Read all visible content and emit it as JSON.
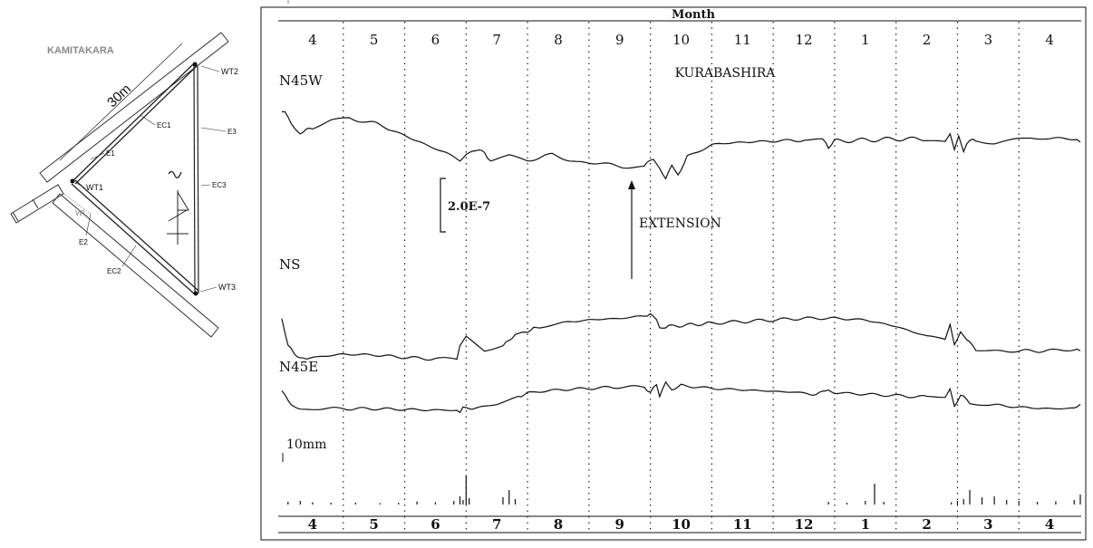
{
  "map": {
    "site_label": "KAMITAKARA",
    "distance_label": "30m",
    "labels": {
      "wt1": "WT1",
      "wt2": "WT2",
      "wt3": "WT3",
      "ec1": "EC1",
      "ec2": "EC2",
      "ec3": "EC3",
      "e1": "E1",
      "e2": "E2",
      "e3": "E3",
      "wl": "WL"
    },
    "north_icon": "north-arrow-icon"
  },
  "chart_data": {
    "type": "line",
    "title": "KURABASHIRA",
    "xlabel": "Month",
    "months_top": [
      "4",
      "5",
      "6",
      "7",
      "8",
      "9",
      "10",
      "11",
      "12",
      "1",
      "2",
      "3",
      "4"
    ],
    "months_bottom": [
      "4",
      "5",
      "6",
      "7",
      "8",
      "9",
      "10",
      "11",
      "12",
      "1",
      "2",
      "3",
      "4"
    ],
    "scale_bar_label": "2.0E-7",
    "annotation": "EXTENSION",
    "rain_scale_label": "10mm",
    "x_unit": "month index (0 = start of month 4)",
    "series": [
      {
        "name": "N45W",
        "points": [
          [
            0.0,
            0.9
          ],
          [
            0.05,
            1.0
          ],
          [
            0.15,
            0.3
          ],
          [
            0.3,
            -0.1
          ],
          [
            0.5,
            0.2
          ],
          [
            0.8,
            0.5
          ],
          [
            1.1,
            0.6
          ],
          [
            1.5,
            0.4
          ],
          [
            2.0,
            -0.2
          ],
          [
            2.5,
            -0.8
          ],
          [
            2.9,
            -1.3
          ],
          [
            3.05,
            -1.0
          ],
          [
            3.2,
            -0.8
          ],
          [
            3.4,
            -1.3
          ],
          [
            3.7,
            -1.1
          ],
          [
            4.0,
            -1.3
          ],
          [
            4.4,
            -1.1
          ],
          [
            4.8,
            -1.4
          ],
          [
            5.2,
            -1.5
          ],
          [
            5.6,
            -1.6
          ],
          [
            5.9,
            -1.6
          ],
          [
            6.05,
            -1.2
          ],
          [
            6.15,
            -1.8
          ],
          [
            6.25,
            -2.1
          ],
          [
            6.35,
            -1.6
          ],
          [
            6.45,
            -2.0
          ],
          [
            6.6,
            -1.2
          ],
          [
            7.0,
            -0.6
          ],
          [
            7.5,
            -0.5
          ],
          [
            8.0,
            -0.45
          ],
          [
            8.5,
            -0.4
          ],
          [
            8.8,
            -0.4
          ],
          [
            8.9,
            -0.7
          ],
          [
            9.0,
            -0.45
          ],
          [
            9.5,
            -0.4
          ],
          [
            10.0,
            -0.35
          ],
          [
            10.5,
            -0.35
          ],
          [
            10.8,
            -0.5
          ],
          [
            10.88,
            -0.1
          ],
          [
            10.95,
            -0.8
          ],
          [
            11.02,
            -0.2
          ],
          [
            11.1,
            -0.9
          ],
          [
            11.15,
            -0.5
          ],
          [
            11.3,
            -0.4
          ],
          [
            11.6,
            -0.5
          ],
          [
            11.9,
            -0.4
          ],
          [
            12.2,
            -0.3
          ],
          [
            12.5,
            -0.35
          ],
          [
            12.9,
            -0.3
          ],
          [
            13.0,
            -0.5
          ]
        ]
      },
      {
        "name": "NS",
        "points": [
          [
            0.0,
            0.2
          ],
          [
            0.1,
            -1.5
          ],
          [
            0.3,
            -2.3
          ],
          [
            0.5,
            -2.2
          ],
          [
            1.0,
            -2.0
          ],
          [
            1.5,
            -2.05
          ],
          [
            2.0,
            -2.2
          ],
          [
            2.5,
            -2.3
          ],
          [
            2.85,
            -2.3
          ],
          [
            2.9,
            -1.4
          ],
          [
            3.0,
            -1.0
          ],
          [
            3.3,
            -1.8
          ],
          [
            3.6,
            -1.5
          ],
          [
            3.8,
            -0.8
          ],
          [
            4.0,
            -0.6
          ],
          [
            4.2,
            -0.3
          ],
          [
            4.5,
            -0.1
          ],
          [
            5.0,
            0.1
          ],
          [
            5.5,
            0.2
          ],
          [
            5.9,
            0.3
          ],
          [
            6.0,
            0.5
          ],
          [
            6.1,
            0.1
          ],
          [
            6.15,
            -0.4
          ],
          [
            6.3,
            -0.3
          ],
          [
            7.0,
            -0.1
          ],
          [
            7.5,
            0.0
          ],
          [
            8.0,
            0.1
          ],
          [
            8.5,
            0.2
          ],
          [
            9.0,
            0.2
          ],
          [
            9.5,
            0.1
          ],
          [
            10.0,
            -0.3
          ],
          [
            10.5,
            -0.9
          ],
          [
            10.8,
            -1.1
          ],
          [
            10.88,
            -0.2
          ],
          [
            10.95,
            -1.5
          ],
          [
            11.05,
            -0.6
          ],
          [
            11.15,
            -1.1
          ],
          [
            11.3,
            -1.7
          ],
          [
            11.6,
            -1.8
          ],
          [
            12.0,
            -1.8
          ],
          [
            12.5,
            -1.8
          ],
          [
            12.9,
            -1.7
          ],
          [
            13.0,
            -1.8
          ]
        ]
      },
      {
        "name": "N45E",
        "points": [
          [
            0.0,
            0.5
          ],
          [
            0.15,
            -0.4
          ],
          [
            0.3,
            -0.8
          ],
          [
            0.6,
            -0.7
          ],
          [
            1.0,
            -0.7
          ],
          [
            1.5,
            -0.7
          ],
          [
            2.0,
            -0.75
          ],
          [
            2.5,
            -0.8
          ],
          [
            2.85,
            -0.8
          ],
          [
            2.9,
            -1.0
          ],
          [
            2.95,
            -0.6
          ],
          [
            3.1,
            -0.7
          ],
          [
            3.5,
            -0.4
          ],
          [
            3.8,
            0.0
          ],
          [
            4.0,
            0.4
          ],
          [
            4.5,
            0.6
          ],
          [
            5.0,
            0.7
          ],
          [
            5.5,
            0.8
          ],
          [
            5.9,
            0.8
          ],
          [
            6.0,
            0.4
          ],
          [
            6.1,
            1.0
          ],
          [
            6.15,
            0.2
          ],
          [
            6.25,
            1.1
          ],
          [
            6.35,
            0.6
          ],
          [
            6.5,
            0.9
          ],
          [
            7.0,
            0.7
          ],
          [
            7.5,
            0.6
          ],
          [
            8.0,
            0.5
          ],
          [
            8.5,
            0.4
          ],
          [
            8.7,
            0.2
          ],
          [
            8.8,
            0.6
          ],
          [
            9.0,
            0.4
          ],
          [
            9.5,
            0.3
          ],
          [
            10.0,
            0.2
          ],
          [
            10.5,
            0.1
          ],
          [
            10.8,
            0.1
          ],
          [
            10.88,
            0.7
          ],
          [
            10.95,
            -0.6
          ],
          [
            11.05,
            0.3
          ],
          [
            11.2,
            -0.3
          ],
          [
            11.5,
            -0.4
          ],
          [
            12.0,
            -0.6
          ],
          [
            12.5,
            -0.7
          ],
          [
            12.9,
            -0.7
          ],
          [
            13.0,
            -0.4
          ]
        ]
      }
    ],
    "rain_bars": [
      [
        0.1,
        0.3
      ],
      [
        0.3,
        0.4
      ],
      [
        0.5,
        0.25
      ],
      [
        0.8,
        0.2
      ],
      [
        1.2,
        0.2
      ],
      [
        1.6,
        0.15
      ],
      [
        1.9,
        0.2
      ],
      [
        2.2,
        0.35
      ],
      [
        2.5,
        0.25
      ],
      [
        2.8,
        0.4
      ],
      [
        2.9,
        0.9
      ],
      [
        2.95,
        0.5
      ],
      [
        3.0,
        3.2
      ],
      [
        3.05,
        0.7
      ],
      [
        3.6,
        0.8
      ],
      [
        3.7,
        1.6
      ],
      [
        3.8,
        0.6
      ],
      [
        8.9,
        0.3
      ],
      [
        9.2,
        0.2
      ],
      [
        9.5,
        0.4
      ],
      [
        9.65,
        2.3
      ],
      [
        9.8,
        0.3
      ],
      [
        10.9,
        0.25
      ],
      [
        11.0,
        0.4
      ],
      [
        11.1,
        0.6
      ],
      [
        11.2,
        1.6
      ],
      [
        11.4,
        0.8
      ],
      [
        11.6,
        0.9
      ],
      [
        11.8,
        0.5
      ],
      [
        12.0,
        0.4
      ],
      [
        12.3,
        0.3
      ],
      [
        12.6,
        0.35
      ],
      [
        12.9,
        0.5
      ],
      [
        13.0,
        1.1
      ]
    ]
  }
}
